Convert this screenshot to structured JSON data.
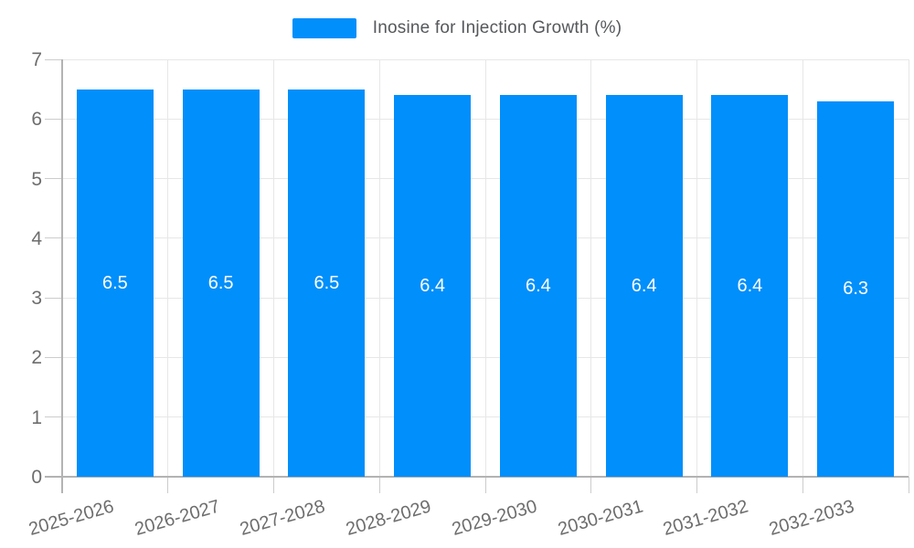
{
  "legend": {
    "label": "Inosine for Injection Growth (%)",
    "swatch_color": "#008FFB"
  },
  "chart_data": {
    "type": "bar",
    "title": "",
    "xlabel": "",
    "ylabel": "",
    "series_name": "Inosine for Injection Growth (%)",
    "categories": [
      "2025-2026",
      "2026-2027",
      "2027-2028",
      "2028-2029",
      "2029-2030",
      "2030-2031",
      "2031-2032",
      "2032-2033"
    ],
    "values": [
      6.5,
      6.5,
      6.5,
      6.4,
      6.4,
      6.4,
      6.4,
      6.3
    ],
    "data_labels": [
      "6.5",
      "6.5",
      "6.5",
      "6.4",
      "6.4",
      "6.4",
      "6.4",
      "6.3"
    ],
    "ylim": [
      0,
      7
    ],
    "yticks": [
      0,
      1,
      2,
      3,
      4,
      5,
      6,
      7
    ],
    "grid": true,
    "legend_position": "top",
    "bar_color": "#008FFB",
    "data_label_color": "#ffffff",
    "grid_color": "#e7e7e7",
    "axis_color": "#b3b3b3",
    "label_color": "#6d6d6d"
  }
}
